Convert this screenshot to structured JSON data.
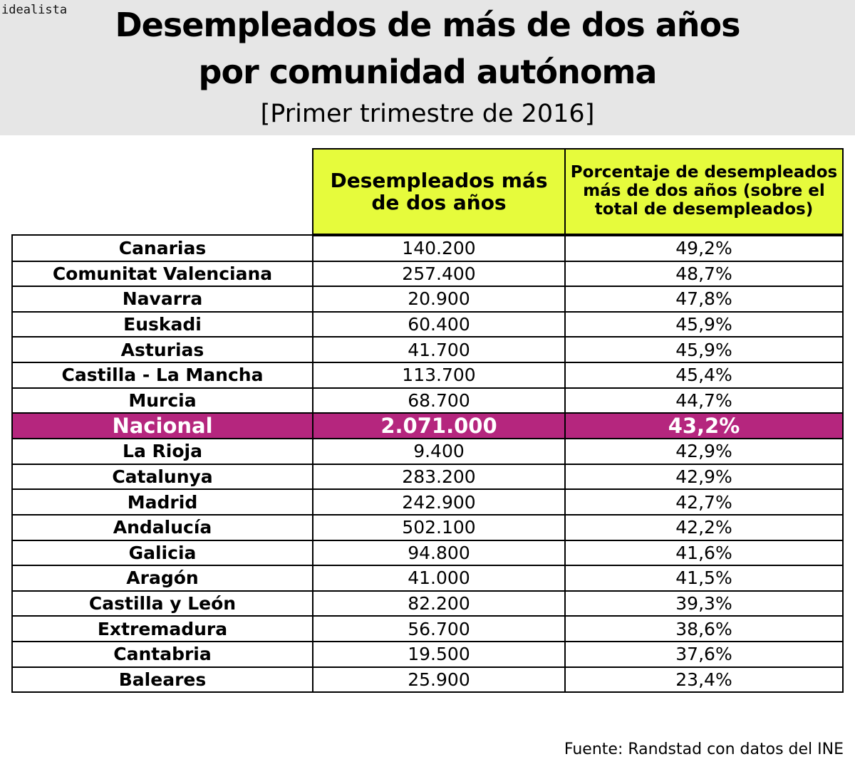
{
  "brand": "idealista",
  "title_line1": "Desempleados de más de dos años",
  "title_line2": "por comunidad autónoma",
  "subtitle": "[Primer trimestre de 2016]",
  "source": "Fuente: Randstad con datos del INE",
  "colors": {
    "header_bg": "#e6e6e6",
    "column_header_bg": "#e6fb3c",
    "highlight_row_bg": "#b5267e",
    "highlight_row_text": "#ffffff"
  },
  "chart_data": {
    "type": "table",
    "title": "Desempleados de más de dos años por comunidad autónoma",
    "subtitle": "[Primer trimestre de 2016]",
    "columns": [
      "",
      "Desempleados más de dos años",
      "Porcentaje de desempleados más de dos años (sobre el total de desempleados)"
    ],
    "highlight_row": "Nacional",
    "rows": [
      {
        "region": "Canarias",
        "unemployed": "140.200",
        "percent": "49,2%"
      },
      {
        "region": "Comunitat Valenciana",
        "unemployed": "257.400",
        "percent": "48,7%"
      },
      {
        "region": "Navarra",
        "unemployed": "20.900",
        "percent": "47,8%"
      },
      {
        "region": "Euskadi",
        "unemployed": "60.400",
        "percent": "45,9%"
      },
      {
        "region": "Asturias",
        "unemployed": "41.700",
        "percent": "45,9%"
      },
      {
        "region": "Castilla - La Mancha",
        "unemployed": "113.700",
        "percent": "45,4%"
      },
      {
        "region": "Murcia",
        "unemployed": "68.700",
        "percent": "44,7%"
      },
      {
        "region": "Nacional",
        "unemployed": "2.071.000",
        "percent": "43,2%"
      },
      {
        "region": "La Rioja",
        "unemployed": "9.400",
        "percent": "42,9%"
      },
      {
        "region": "Catalunya",
        "unemployed": "283.200",
        "percent": "42,9%"
      },
      {
        "region": "Madrid",
        "unemployed": "242.900",
        "percent": "42,7%"
      },
      {
        "region": "Andalucía",
        "unemployed": "502.100",
        "percent": "42,2%"
      },
      {
        "region": "Galicia",
        "unemployed": "94.800",
        "percent": "41,6%"
      },
      {
        "region": "Aragón",
        "unemployed": "41.000",
        "percent": "41,5%"
      },
      {
        "region": "Castilla y León",
        "unemployed": "82.200",
        "percent": "39,3%"
      },
      {
        "region": "Extremadura",
        "unemployed": "56.700",
        "percent": "38,6%"
      },
      {
        "region": "Cantabria",
        "unemployed": "19.500",
        "percent": "37,6%"
      },
      {
        "region": "Baleares",
        "unemployed": "25.900",
        "percent": "23,4%"
      }
    ]
  }
}
